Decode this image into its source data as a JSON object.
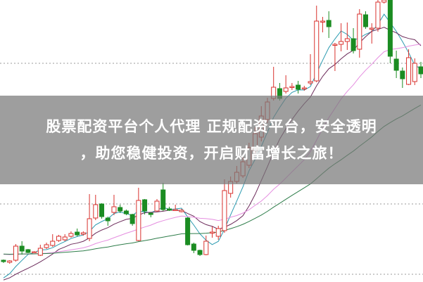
{
  "banner": {
    "line1": "股票配资平台个人代理 正规配资平台，安全透明",
    "line2": "，助您稳健投资，开启财富增长之旅！"
  },
  "chart_data": {
    "type": "candlestick",
    "title": "",
    "xlabel": "",
    "ylabel": "",
    "grid": "horizontal dotted",
    "ylim": [
      0,
      401
    ],
    "colors": {
      "up": "#d9322e",
      "down": "#1b8c22",
      "ma_lines": [
        "#2a9ab0",
        "#6b2a5a",
        "#e58ee0",
        "#2e7d4a"
      ],
      "grid": "#999999"
    },
    "candles_ohlc": [
      [
        31,
        32,
        27,
        29
      ],
      [
        28,
        31,
        26,
        30
      ],
      [
        31,
        54,
        29,
        51
      ],
      [
        51,
        58,
        39,
        44
      ],
      [
        46,
        47,
        41,
        42
      ],
      [
        43,
        44,
        42,
        43
      ],
      [
        38,
        53,
        37,
        48
      ],
      [
        49,
        56,
        47,
        53
      ],
      [
        52,
        68,
        50,
        58
      ],
      [
        59,
        67,
        57,
        65
      ],
      [
        60,
        68,
        58,
        64
      ],
      [
        65,
        72,
        63,
        69
      ],
      [
        71,
        76,
        65,
        67
      ],
      [
        68,
        72,
        66,
        70
      ],
      [
        62,
        125,
        58,
        90
      ],
      [
        91,
        124,
        88,
        110
      ],
      [
        111,
        112,
        90,
        93
      ],
      [
        91,
        93,
        80,
        87
      ],
      [
        99,
        124,
        95,
        107
      ],
      [
        106,
        110,
        98,
        101
      ],
      [
        101,
        103,
        95,
        97
      ],
      [
        96,
        97,
        80,
        83
      ],
      [
        59,
        134,
        58,
        116
      ],
      [
        117,
        118,
        96,
        101
      ],
      [
        98,
        99,
        92,
        96
      ],
      [
        101,
        118,
        100,
        115
      ],
      [
        131,
        141,
        101,
        103
      ],
      [
        104,
        107,
        101,
        102
      ],
      [
        103,
        110,
        101,
        103
      ],
      [
        100,
        104,
        99,
        102
      ],
      [
        91,
        92,
        52,
        53
      ],
      [
        54,
        56,
        41,
        45
      ],
      [
        45,
        46,
        37,
        39
      ],
      [
        39,
        66,
        38,
        58
      ],
      [
        70,
        79,
        63,
        71
      ],
      [
        65,
        80,
        60,
        76
      ],
      [
        73,
        146,
        70,
        130
      ],
      [
        126,
        150,
        120,
        143
      ],
      [
        143,
        165,
        140,
        156
      ],
      [
        151,
        178,
        148,
        171
      ],
      [
        166,
        198,
        162,
        191
      ],
      [
        186,
        220,
        182,
        211
      ],
      [
        206,
        250,
        200,
        236
      ],
      [
        231,
        262,
        226,
        256
      ],
      [
        261,
        306,
        258,
        277
      ],
      [
        275,
        283,
        258,
        261
      ],
      [
        271,
        294,
        268,
        276
      ],
      [
        278,
        283,
        273,
        278
      ],
      [
        280,
        286,
        268,
        274
      ],
      [
        276,
        279,
        272,
        276
      ],
      [
        283,
        324,
        280,
        285
      ],
      [
        286,
        393,
        284,
        371
      ],
      [
        371,
        377,
        355,
        371
      ],
      [
        372,
        385,
        347,
        363
      ],
      [
        338,
        340,
        300,
        338
      ],
      [
        338,
        368,
        328,
        342
      ],
      [
        342,
        369,
        330,
        346
      ],
      [
        346,
        361,
        325,
        329
      ],
      [
        331,
        388,
        319,
        381
      ],
      [
        380,
        385,
        360,
        363
      ],
      [
        361,
        368,
        339,
        361
      ],
      [
        361,
        401,
        356,
        398
      ],
      [
        398,
        401,
        396,
        401
      ],
      [
        401,
        401,
        311,
        321
      ],
      [
        317,
        329,
        290,
        301
      ],
      [
        300,
        305,
        276,
        289
      ],
      [
        281,
        331,
        280,
        319
      ],
      [
        285,
        318,
        280,
        311
      ],
      [
        306,
        313,
        290,
        296
      ]
    ],
    "gridlines": [
      311,
      111,
      11
    ]
  }
}
